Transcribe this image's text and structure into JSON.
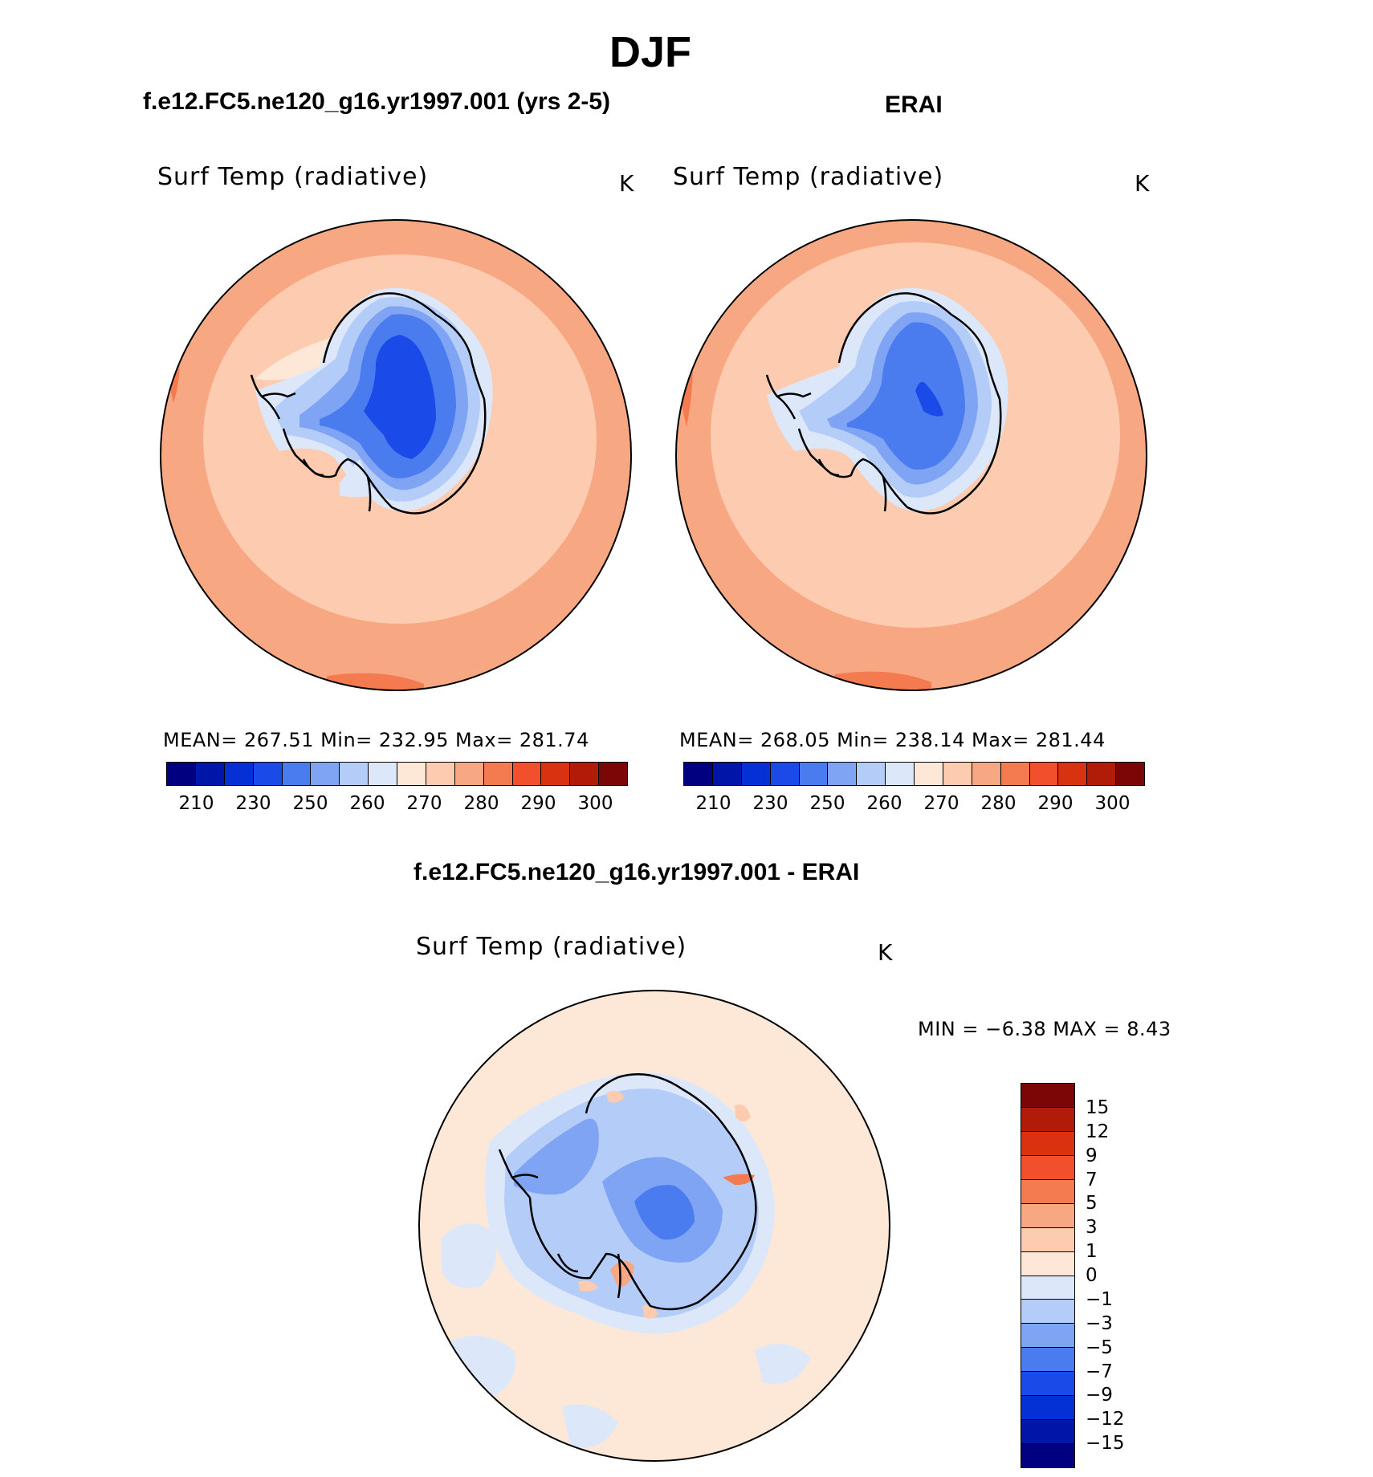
{
  "figure": {
    "title": "DJF"
  },
  "panels": [
    {
      "title": "f.e12.FC5.ne120_g16.yr1997.001 (yrs 2-5)",
      "variable": "Surf Temp (radiative)",
      "units": "K",
      "stats": "MEAN=  267.51    Min=  232.95    Max=  281.74"
    },
    {
      "title": "ERAI",
      "variable": "Surf Temp (radiative)",
      "units": "K",
      "stats": "MEAN=  268.05    Min=  238.14    Max=  281.44"
    },
    {
      "title": "f.e12.FC5.ne120_g16.yr1997.001 - ERAI",
      "variable": "Surf Temp (radiative)",
      "units": "K",
      "stats": "MIN =    −6.38  MAX =     8.43"
    }
  ],
  "colorbar_abs": {
    "colors": [
      "#000080",
      "#0016a8",
      "#0530d6",
      "#1a4ae8",
      "#4a7cf0",
      "#80a4f4",
      "#b4ccf8",
      "#dce8fa",
      "#fde8d8",
      "#fccbb0",
      "#f7a882",
      "#f47a50",
      "#f2502c",
      "#d83210",
      "#b01c08",
      "#7a0606"
    ],
    "tick_labels": [
      "210",
      "230",
      "250",
      "260",
      "270",
      "280",
      "290",
      "300"
    ]
  },
  "colorbar_diff": {
    "colors": [
      "#7a0606",
      "#b01c08",
      "#d83210",
      "#f2502c",
      "#f47a50",
      "#f7a882",
      "#fccbb0",
      "#fde8d8",
      "#dce8fa",
      "#b4ccf8",
      "#80a4f4",
      "#4a7cf0",
      "#1a4ae8",
      "#0530d6",
      "#0016a8",
      "#000080"
    ],
    "tick_labels": [
      "15",
      "12",
      "9",
      "7",
      "5",
      "3",
      "1",
      "0",
      "−1",
      "−3",
      "−5",
      "−7",
      "−9",
      "−12",
      "−15"
    ]
  }
}
